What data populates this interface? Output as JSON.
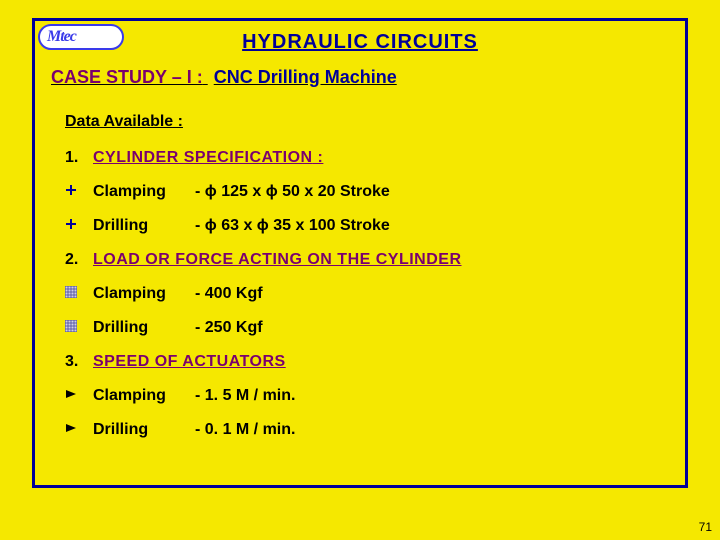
{
  "logo_text": "Mtec",
  "title": "HYDRAULIC  CIRCUITS",
  "case_study_label": "CASE STUDY – I :",
  "case_study_subject": "CNC Drilling  Machine",
  "data_available": "Data  Available :",
  "sections": [
    {
      "num": "1.",
      "heading": "CYLINDER  SPECIFICATION",
      "colon": " :",
      "bullet_type": "plus",
      "items": [
        {
          "label": "Clamping",
          "value": "- ϕ 125 x ϕ 50 x 20 Stroke"
        },
        {
          "label": "Drilling",
          "value": "- ϕ 63 x ϕ 35 x 100 Stroke"
        }
      ]
    },
    {
      "num": "2.",
      "heading": "LOAD OR FORCE ACTING ON THE CYLINDER",
      "colon": "",
      "bullet_type": "hatch",
      "items": [
        {
          "label": "Clamping",
          "value": "-  400 Kgf"
        },
        {
          "label": "Drilling",
          "value": "-  250 Kgf"
        }
      ]
    },
    {
      "num": "3.",
      "heading": "SPEED  OF  ACTUATORS",
      "colon": "",
      "bullet_type": "tri",
      "items": [
        {
          "label": "Clamping",
          "value": "-  1. 5 M / min."
        },
        {
          "label": "Drilling",
          "value": "-  0. 1 M / min."
        }
      ]
    }
  ],
  "page_number": "71",
  "colors": {
    "background": "#f5e800",
    "border": "#000099",
    "heading_purple": "#7a006e",
    "heading_blue": "#000099"
  }
}
